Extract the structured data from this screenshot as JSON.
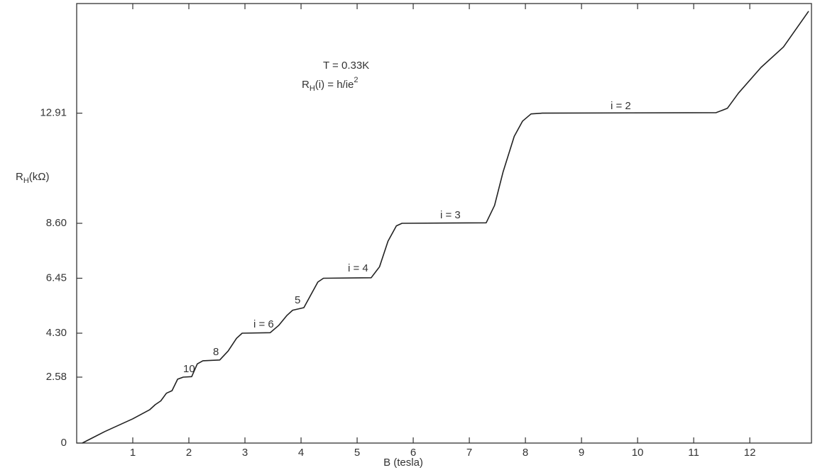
{
  "chart_data": {
    "type": "line",
    "x_label": "B (tesla)",
    "y_label": {
      "parts": [
        "R",
        "H",
        "(kΩ)"
      ]
    },
    "annotations": [
      "T  =  0.33K",
      {
        "parts": [
          "R",
          "H",
          "(i)  =  h/ie",
          "2"
        ]
      },
      "i = 2",
      "i = 3",
      "i = 4",
      "5",
      "i = 6",
      "8",
      "10"
    ],
    "x": [
      0.1,
      0.5,
      1.0,
      1.3,
      1.4,
      1.5,
      1.6,
      1.7,
      1.8,
      1.9,
      2.05,
      2.15,
      2.25,
      2.55,
      2.7,
      2.85,
      2.95,
      3.45,
      3.6,
      3.75,
      3.85,
      4.05,
      4.15,
      4.3,
      4.4,
      5.25,
      5.4,
      5.55,
      5.7,
      5.8,
      7.3,
      7.45,
      7.6,
      7.8,
      7.95,
      8.1,
      8.3,
      11.4,
      11.6,
      11.8,
      12.2,
      12.6,
      13.05
    ],
    "values": [
      0,
      0.45,
      0.95,
      1.3,
      1.5,
      1.65,
      1.95,
      2.05,
      2.5,
      2.58,
      2.6,
      3.1,
      3.22,
      3.25,
      3.6,
      4.1,
      4.3,
      4.32,
      4.6,
      5.0,
      5.2,
      5.3,
      5.7,
      6.3,
      6.45,
      6.47,
      6.9,
      7.9,
      8.5,
      8.6,
      8.62,
      9.3,
      10.6,
      12.0,
      12.6,
      12.88,
      12.91,
      12.93,
      13.1,
      13.7,
      14.7,
      15.5,
      16.9
    ],
    "color": "#222222",
    "xlim": [
      0,
      13.1
    ],
    "ylim": [
      0,
      17.2
    ],
    "xticks": [
      1,
      2,
      3,
      4,
      5,
      6,
      7,
      8,
      9,
      10,
      11,
      12
    ],
    "yticks": [
      0,
      2.58,
      {
        "value": 4.3,
        "label": "4.30"
      },
      6.45,
      {
        "value": 8.6,
        "label": "8.60"
      },
      12.91
    ],
    "grid": false
  }
}
